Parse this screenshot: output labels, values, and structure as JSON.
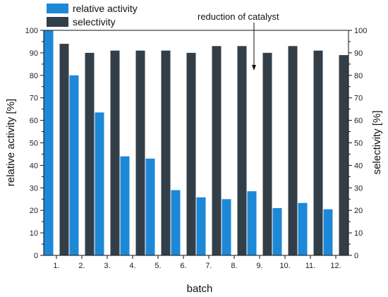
{
  "chart_data": {
    "type": "bar",
    "categories": [
      "1.",
      "2.",
      "3.",
      "4.",
      "5.",
      "6.",
      "7.",
      "8.",
      "9.",
      "10.",
      "11.",
      "12."
    ],
    "series": [
      {
        "name": "relative activity",
        "values": [
          100,
          80,
          63.5,
          44,
          43,
          29,
          25.8,
          25,
          28.5,
          21,
          23.3,
          20.5
        ],
        "color": "#1e88d8"
      },
      {
        "name": "selectivity",
        "values": [
          94,
          90,
          91,
          91,
          91,
          90,
          93,
          93,
          90,
          93,
          91,
          89
        ],
        "color": "#333f48"
      }
    ],
    "xlabel": "batch",
    "ylabel_left": "relative activity [%]",
    "ylabel_right": "selectivity [%]",
    "ylim": [
      0,
      100
    ],
    "yticks": [
      0,
      10,
      20,
      30,
      40,
      50,
      60,
      70,
      80,
      90,
      100
    ],
    "legend_position": "top-left",
    "annotation": {
      "text": "reduction of catalyst",
      "category": "9."
    }
  }
}
